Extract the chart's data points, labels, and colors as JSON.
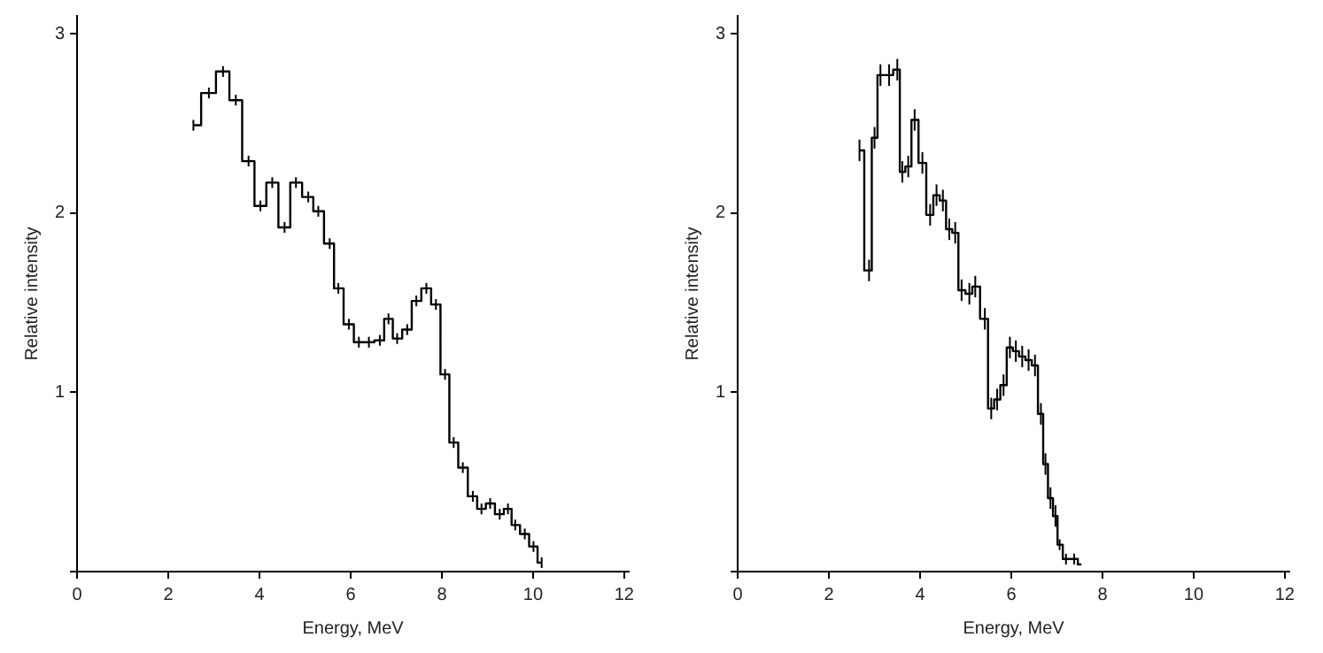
{
  "chart_data": [
    {
      "type": "step",
      "xlabel": "Energy, MeV",
      "ylabel": "Relative intensity",
      "xlim": [
        0,
        12.1
      ],
      "ylim": [
        0,
        3.1
      ],
      "xticks": [
        0,
        2,
        4,
        6,
        8,
        10,
        12
      ],
      "yticks": [
        {
          "value": 0,
          "label": null
        },
        1,
        2,
        3
      ],
      "grid": false,
      "x": [
        2.55,
        2.89,
        3.2,
        3.48,
        3.76,
        4.02,
        4.28,
        4.55,
        4.8,
        5.07,
        5.29,
        5.54,
        5.73,
        5.96,
        6.18,
        6.4,
        6.64,
        6.83,
        7.02,
        7.24,
        7.44,
        7.66,
        7.87,
        8.07,
        8.26,
        8.46,
        8.68,
        8.87,
        9.06,
        9.27,
        9.45,
        9.61,
        9.82,
        10.01,
        10.19
      ],
      "series": [
        {
          "color": "#000000",
          "values": [
            2.49,
            2.67,
            2.79,
            2.63,
            2.29,
            2.04,
            2.17,
            1.92,
            2.17,
            2.09,
            2.01,
            1.83,
            1.58,
            1.38,
            1.28,
            1.28,
            1.29,
            1.41,
            1.3,
            1.35,
            1.51,
            1.58,
            1.49,
            1.1,
            0.72,
            0.58,
            0.42,
            0.35,
            0.38,
            0.32,
            0.35,
            0.26,
            0.21,
            0.14,
            0.05
          ],
          "errors": [
            0.03,
            0.03,
            0.03,
            0.03,
            0.03,
            0.03,
            0.03,
            0.03,
            0.03,
            0.03,
            0.03,
            0.03,
            0.03,
            0.03,
            0.03,
            0.03,
            0.03,
            0.03,
            0.03,
            0.03,
            0.03,
            0.03,
            0.03,
            0.03,
            0.03,
            0.03,
            0.03,
            0.03,
            0.03,
            0.03,
            0.03,
            0.03,
            0.03,
            0.03,
            0.03
          ]
        }
      ]
    },
    {
      "type": "step",
      "xlabel": "Energy, MeV",
      "ylabel": "Relative intensity",
      "xlim": [
        0,
        12.1
      ],
      "ylim": [
        0,
        3.1
      ],
      "xticks": [
        0,
        2,
        4,
        6,
        8,
        10,
        12
      ],
      "yticks": [
        {
          "value": 0,
          "label": null
        },
        1,
        2,
        3
      ],
      "grid": false,
      "x": [
        2.67,
        2.88,
        3.0,
        3.13,
        3.32,
        3.5,
        3.61,
        3.74,
        3.88,
        4.05,
        4.22,
        4.36,
        4.5,
        4.64,
        4.77,
        4.91,
        5.08,
        5.21,
        5.42,
        5.56,
        5.69,
        5.83,
        5.97,
        6.1,
        6.24,
        6.38,
        6.52,
        6.65,
        6.75,
        6.86,
        6.97,
        7.06,
        7.2,
        7.38,
        7.54
      ],
      "series": [
        {
          "color": "#000000",
          "values": [
            2.35,
            1.68,
            2.42,
            2.77,
            2.77,
            2.8,
            2.23,
            2.26,
            2.52,
            2.28,
            1.99,
            2.1,
            2.07,
            1.91,
            1.89,
            1.57,
            1.55,
            1.59,
            1.41,
            0.91,
            0.96,
            1.04,
            1.25,
            1.23,
            1.2,
            1.18,
            1.15,
            0.88,
            0.6,
            0.41,
            0.31,
            0.15,
            0.07,
            0.07,
            0.04
          ],
          "errors": [
            0.06,
            0.06,
            0.06,
            0.06,
            0.06,
            0.06,
            0.06,
            0.06,
            0.06,
            0.06,
            0.06,
            0.06,
            0.06,
            0.06,
            0.06,
            0.06,
            0.06,
            0.06,
            0.06,
            0.06,
            0.06,
            0.06,
            0.06,
            0.06,
            0.06,
            0.06,
            0.06,
            0.06,
            0.06,
            0.06,
            0.06,
            0.03,
            0.03,
            0.03,
            null
          ]
        }
      ]
    }
  ]
}
